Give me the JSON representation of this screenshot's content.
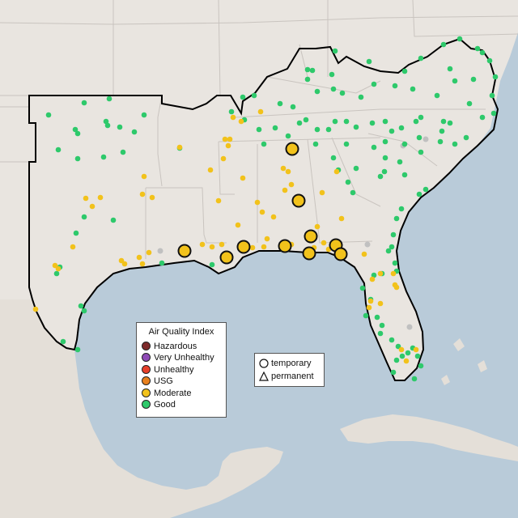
{
  "legend": {
    "title": "Air Quality Index",
    "items": [
      {
        "label": "Hazardous",
        "color": "#7e2a2a"
      },
      {
        "label": "Very Unhealthy",
        "color": "#8e4bb6"
      },
      {
        "label": "Unhealthy",
        "color": "#e8402a"
      },
      {
        "label": "USG",
        "color": "#e8801e"
      },
      {
        "label": "Moderate",
        "color": "#f2c21b"
      },
      {
        "label": "Good",
        "color": "#2ec96b"
      }
    ]
  },
  "monitor_types": {
    "items": [
      {
        "label": "temporary",
        "shape": "circle"
      },
      {
        "label": "permanent",
        "shape": "triangle"
      }
    ]
  },
  "colors": {
    "ocean": "#b9cbd9",
    "land": "#e9e5e0",
    "state_border": "#c9c4bf",
    "region_outline": "#000000",
    "no_data": "#c0c0c0"
  }
}
